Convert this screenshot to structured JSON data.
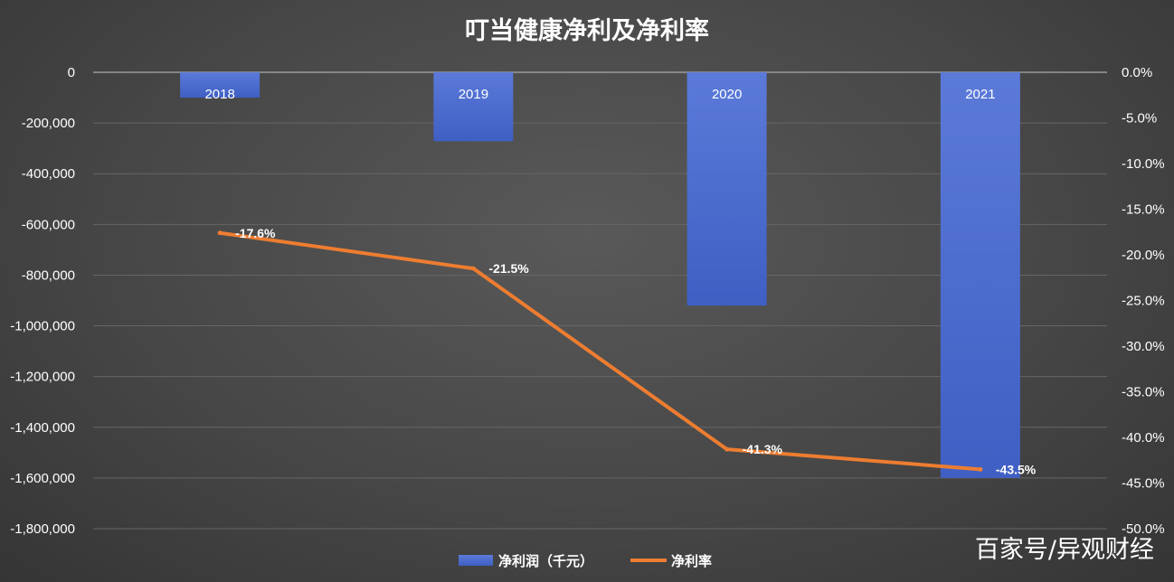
{
  "chart_data": {
    "type": "bar+line",
    "title": "叮当健康净利及净利率",
    "categories": [
      "2018",
      "2019",
      "2020",
      "2021"
    ],
    "series": [
      {
        "name": "净利润（千元）",
        "type": "bar",
        "axis": "left",
        "color": "#4a6ad0",
        "values": [
          -100000,
          -272000,
          -920000,
          -1600000
        ]
      },
      {
        "name": "净利率",
        "type": "line",
        "axis": "right",
        "color": "#ed7d31",
        "values": [
          -17.6,
          -21.5,
          -41.3,
          -43.5
        ],
        "labels": [
          "-17.6%",
          "-21.5%",
          "-41.3%",
          "-43.5%"
        ]
      }
    ],
    "y_left": {
      "min": -1800000,
      "max": 0,
      "step": 200000,
      "ticks": [
        "0",
        "-200,000",
        "-400,000",
        "-600,000",
        "-800,000",
        "-1,000,000",
        "-1,200,000",
        "-1,400,000",
        "-1,600,000",
        "-1,800,000"
      ]
    },
    "y_right": {
      "min": -50,
      "max": 0,
      "step": 5,
      "ticks": [
        "0.0%",
        "-5.0%",
        "-10.0%",
        "-15.0%",
        "-20.0%",
        "-25.0%",
        "-30.0%",
        "-35.0%",
        "-40.0%",
        "-45.0%",
        "-50.0%"
      ]
    },
    "grid": true,
    "legend": "bottom-center"
  },
  "watermark": "百家号/异观财经"
}
